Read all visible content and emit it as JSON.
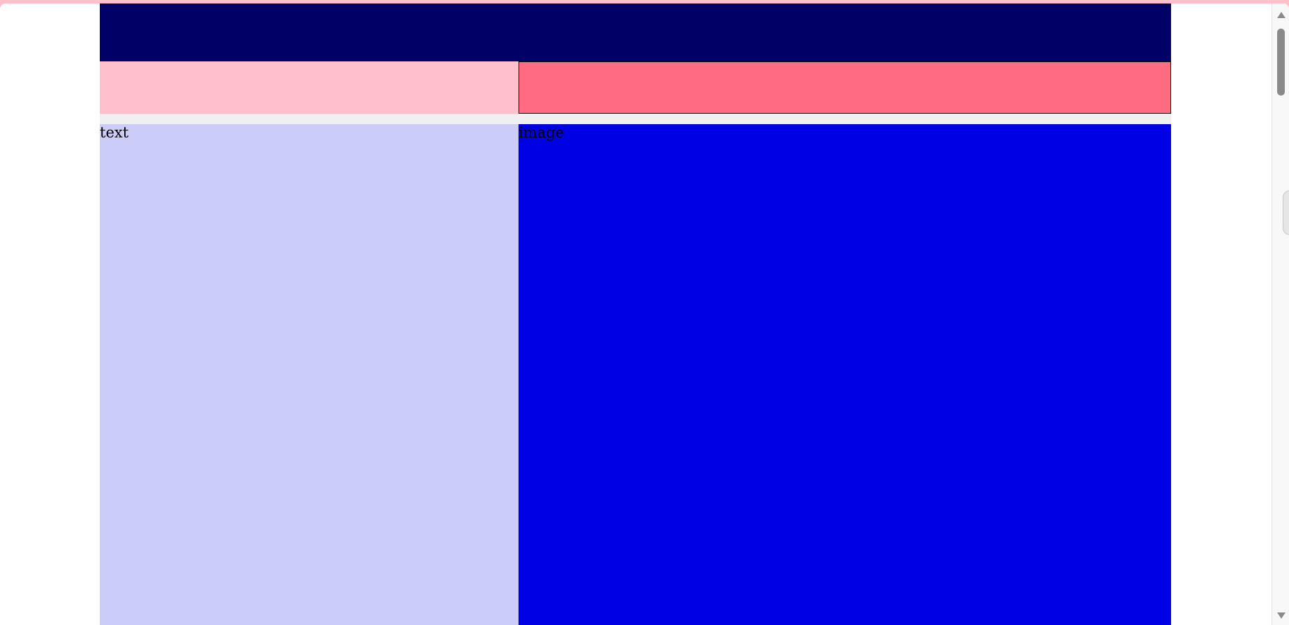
{
  "panels": {
    "text_label": "text",
    "image_label": "image"
  },
  "colors": {
    "outer_frame": "#ffc0cb",
    "header": "#000066",
    "nav_left": "#ffc0cb",
    "nav_right": "#ff6b81",
    "text_panel": "#ccccf8",
    "image_panel": "#0000e4",
    "page_gap": "#f0f0f0"
  },
  "icons": {
    "scroll_up": "scroll-up-arrow-icon",
    "scroll_down": "scroll-down-arrow-icon"
  }
}
